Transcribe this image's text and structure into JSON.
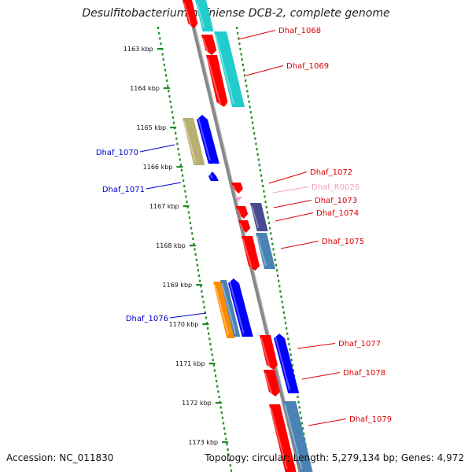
{
  "title": "Desulfitobacterium hafniense DCB-2, complete genome",
  "footer": {
    "accession": "Accession: NC_011830",
    "topology": "Topology: circular; Length: 5,279,134 bp; Genes: 4,972"
  },
  "ticks": [
    "1163 kbp",
    "1164 kbp",
    "1165 kbp",
    "1166 kbp",
    "1167 kbp",
    "1168 kbp",
    "1169 kbp",
    "1170 kbp",
    "1171 kbp",
    "1172 kbp",
    "1173 kbp"
  ],
  "labels_right": [
    {
      "name": "Dhaf_1068",
      "color": "#dd0000"
    },
    {
      "name": "Dhaf_1069",
      "color": "#dd0000"
    },
    {
      "name": "Dhaf_1072",
      "color": "#dd0000"
    },
    {
      "name": "Dhaf_R0026",
      "color": "#f4a0c8"
    },
    {
      "name": "Dhaf_1073",
      "color": "#dd0000"
    },
    {
      "name": "Dhaf_1074",
      "color": "#dd0000"
    },
    {
      "name": "Dhaf_1075",
      "color": "#dd0000"
    },
    {
      "name": "Dhaf_1077",
      "color": "#dd0000"
    },
    {
      "name": "Dhaf_1078",
      "color": "#dd0000"
    },
    {
      "name": "Dhaf_1079",
      "color": "#dd0000"
    }
  ],
  "labels_left": [
    {
      "name": "Dhaf_1070",
      "color": "#0000cc"
    },
    {
      "name": "Dhaf_1071",
      "color": "#0000cc"
    },
    {
      "name": "Dhaf_1076",
      "color": "#0000cc"
    }
  ],
  "colors": {
    "forward": "#ff0000",
    "reverse": "#0000ff",
    "cyan": "#22cccc",
    "steel": "#4a82b4",
    "olive": "#b8b070",
    "slate": "#4a4a90",
    "orange": "#ff8c00",
    "trna": "#f4a0c8",
    "backbone": "#888888",
    "tick": "#228b22"
  }
}
